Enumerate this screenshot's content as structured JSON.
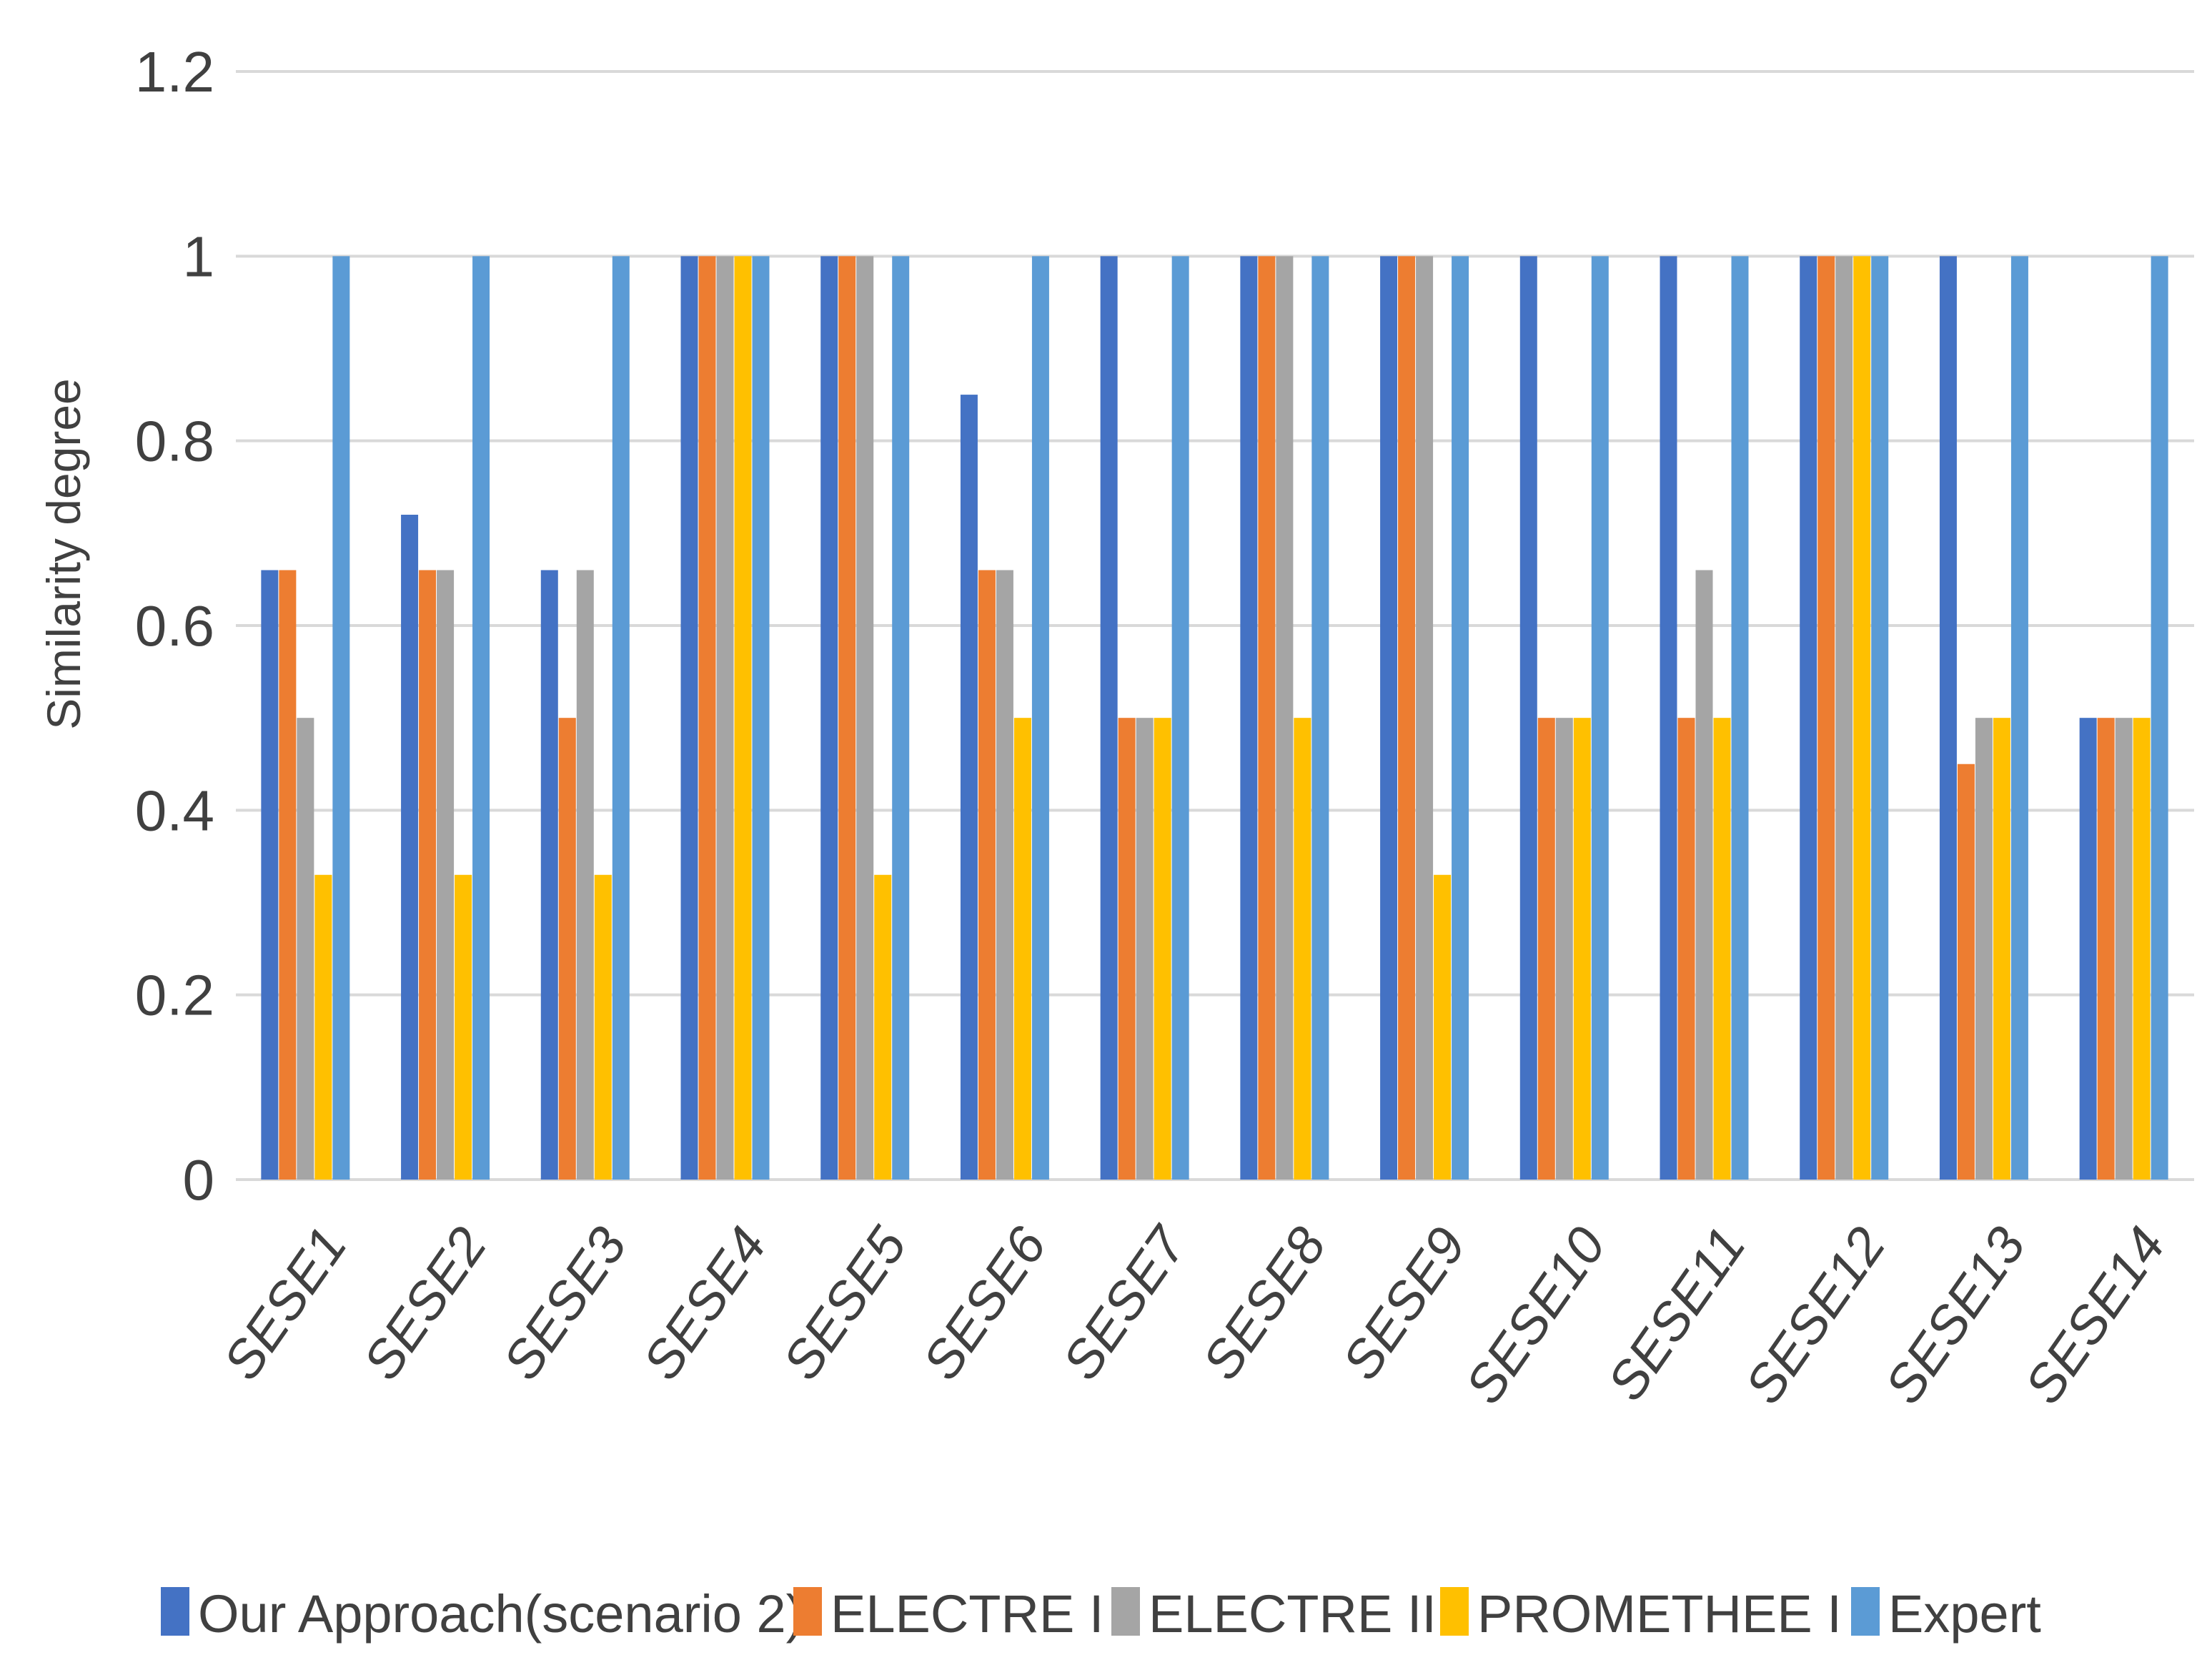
{
  "chart_data": {
    "type": "bar",
    "title": "",
    "xlabel": "",
    "ylabel": "Similarity degree",
    "ylim": [
      0,
      1.2
    ],
    "yticks": [
      "0",
      "0.2",
      "0.4",
      "0.6",
      "0.8",
      "1",
      "1.2"
    ],
    "grid": true,
    "legend_position": "bottom",
    "categories": [
      "SESE1",
      "SESE2",
      "SESE3",
      "SESE4",
      "SESE5",
      "SESE6",
      "SESE7",
      "SESE8",
      "SESE9",
      "SESE10",
      "SESE11",
      "SESE12",
      "SESE13",
      "SESE14"
    ],
    "series": [
      {
        "name": "Our Approach(scenario 2)",
        "color": "#4472C4",
        "values": [
          0.66,
          0.72,
          0.66,
          1,
          1,
          0.85,
          1,
          1,
          1,
          1,
          1,
          1,
          1,
          0.5
        ]
      },
      {
        "name": "ELECTRE I",
        "color": "#ED7D31",
        "values": [
          0.66,
          0.66,
          0.5,
          1,
          1,
          0.66,
          0.5,
          1,
          1,
          0.5,
          0.5,
          1,
          0.45,
          0.5
        ]
      },
      {
        "name": "ELECTRE II",
        "color": "#A5A5A5",
        "values": [
          0.5,
          0.66,
          0.66,
          1,
          1,
          0.66,
          0.5,
          1,
          1,
          0.5,
          0.66,
          1,
          0.5,
          0.5
        ]
      },
      {
        "name": "PROMETHEE I",
        "color": "#FFC000",
        "values": [
          0.33,
          0.33,
          0.33,
          1,
          0.33,
          0.5,
          0.5,
          0.5,
          0.33,
          0.5,
          0.5,
          1,
          0.5,
          0.5
        ]
      },
      {
        "name": "Expert",
        "color": "#5B9BD5",
        "values": [
          1,
          1,
          1,
          1,
          1,
          1,
          1,
          1,
          1,
          1,
          1,
          1,
          1,
          1
        ]
      }
    ]
  }
}
